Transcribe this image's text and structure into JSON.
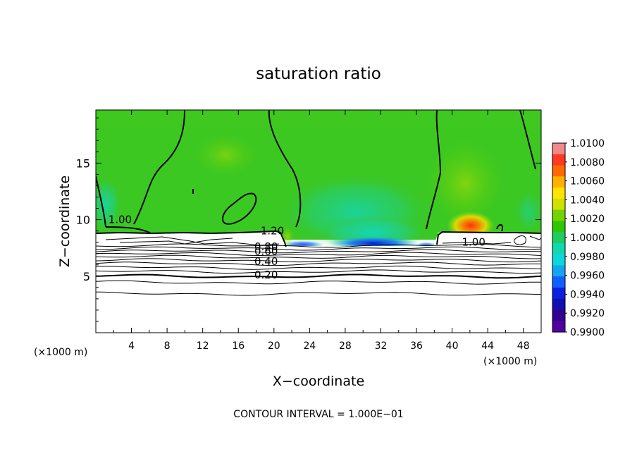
{
  "figure": {
    "title": "saturation ratio",
    "xlabel": "X−coordinate",
    "ylabel": "Z−coordinate",
    "x_unit_left": "(×1000 m)",
    "x_unit_right": "(×1000 m)",
    "footer": "CONTOUR INTERVAL = 1.000E−01"
  },
  "chart_data": {
    "type": "heatmap",
    "title": "saturation ratio",
    "xlabel": "X−coordinate",
    "ylabel": "Z−coordinate",
    "x_unit": "(×1000 m)",
    "xlim": [
      0,
      50
    ],
    "ylim": [
      0,
      19.7
    ],
    "x_ticks": [
      4,
      8,
      12,
      16,
      20,
      24,
      28,
      32,
      36,
      40,
      44,
      48
    ],
    "y_ticks": [
      5,
      10,
      15
    ],
    "colorbar": {
      "min": 0.99,
      "max": 1.01,
      "labels": [
        "1.0100",
        "1.0080",
        "1.0060",
        "1.0040",
        "1.0020",
        "1.0000",
        "0.9980",
        "0.9960",
        "0.9940",
        "0.9920",
        "0.9900"
      ],
      "colors": [
        "#f08a8a",
        "#ff3a20",
        "#ff6a00",
        "#ffb000",
        "#ffe400",
        "#d0e000",
        "#74d400",
        "#2fc800",
        "#1ecc60",
        "#10d8b0",
        "#0bd8d8",
        "#12a8f0",
        "#1060ff",
        "#0a20e0",
        "#1010b0",
        "#300090",
        "#5000a0"
      ]
    },
    "contour_interval": "1.000E−01",
    "contour_labels": [
      {
        "text": "1.00",
        "x": 1.4,
        "z": 9.7
      },
      {
        "text": "1.20",
        "x": 18.5,
        "z": 8.7
      },
      {
        "text": "1.00",
        "x": 41.1,
        "z": 7.7
      },
      {
        "text": "0.80",
        "x": 17.8,
        "z": 7.3
      },
      {
        "text": "0.60",
        "x": 17.8,
        "z": 6.9
      },
      {
        "text": "0.40",
        "x": 17.8,
        "z": 6.0
      },
      {
        "text": "0.20",
        "x": 17.8,
        "z": 4.8
      }
    ],
    "cloud_top_z": [
      9.0,
      8.9,
      9.0,
      8.8,
      8.9,
      8.8,
      8.9,
      8.9,
      8.8,
      8.8,
      8.7,
      7.8,
      7.7,
      7.6,
      7.5,
      7.6,
      7.6,
      7.7,
      7.6,
      7.8,
      8.9,
      8.8,
      8.7,
      8.9,
      8.9,
      8.9
    ],
    "cloud_top_x": [
      0,
      2,
      4,
      6,
      8,
      10,
      12,
      14,
      16,
      18,
      20.5,
      21.5,
      24,
      26,
      28,
      30,
      32,
      34,
      36,
      37.8,
      38.7,
      40,
      42,
      44,
      46,
      50
    ],
    "layer_lines_z": [
      7.7,
      7.45,
      7.2,
      6.95,
      6.7,
      6.4,
      6.1,
      5.75,
      5.4,
      5.0,
      4.45,
      3.45
    ]
  }
}
